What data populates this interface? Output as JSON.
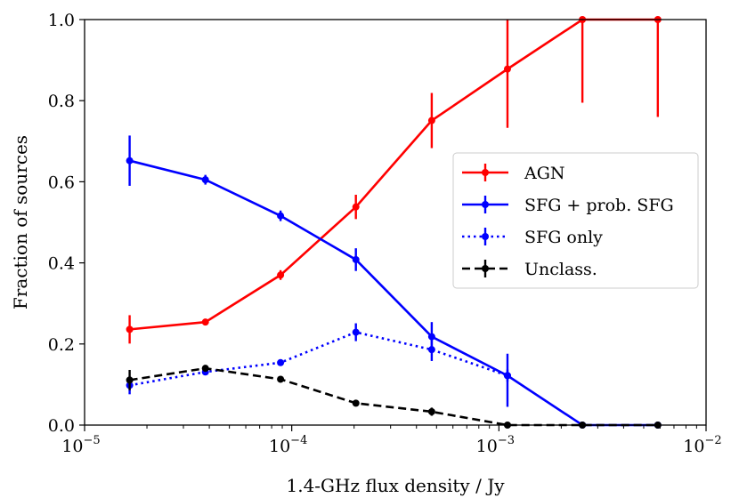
{
  "chart_data": {
    "type": "line",
    "xlabel": "1.4-GHz flux density / Jy",
    "ylabel": "Fraction of sources",
    "xscale": "log",
    "xlim": [
      1e-05,
      0.01
    ],
    "ylim": [
      0,
      1
    ],
    "x_ticks": [
      {
        "value": 1e-05,
        "base": "10",
        "exp": "−5"
      },
      {
        "value": 0.0001,
        "base": "10",
        "exp": "−4"
      },
      {
        "value": 0.001,
        "base": "10",
        "exp": "−3"
      },
      {
        "value": 0.01,
        "base": "10",
        "exp": "−2"
      }
    ],
    "y_ticks": [
      {
        "value": 0,
        "label": "0.0"
      },
      {
        "value": 0.2,
        "label": "0.2"
      },
      {
        "value": 0.4,
        "label": "0.4"
      },
      {
        "value": 0.6,
        "label": "0.6"
      },
      {
        "value": 0.8,
        "label": "0.8"
      },
      {
        "value": 1.0,
        "label": "1.0"
      }
    ],
    "grid": false,
    "legend_position": "right",
    "x": [
      1.65e-05,
      3.83e-05,
      8.83e-05,
      0.000204,
      0.000474,
      0.0011,
      0.00253,
      0.00585
    ],
    "series": [
      {
        "name": "AGN",
        "color": "#ff0000",
        "dash": "solid",
        "values": [
          0.236,
          0.254,
          0.37,
          0.538,
          0.751,
          0.878,
          1.0,
          1.0
        ],
        "err_low": [
          0.035,
          0.0,
          0.012,
          0.03,
          0.068,
          0.145,
          0.205,
          0.24
        ],
        "err_high": [
          0.035,
          0.0,
          0.012,
          0.03,
          0.068,
          0.122,
          0.0,
          0.0
        ]
      },
      {
        "name": "SFG + prob. SFG",
        "color": "#0000ff",
        "dash": "solid",
        "values": [
          0.652,
          0.605,
          0.516,
          0.408,
          0.218,
          0.122,
          0.0,
          0.0
        ],
        "err_low": [
          0.062,
          0.012,
          0.013,
          0.028,
          0.036,
          0.077,
          0.0,
          0.0
        ],
        "err_high": [
          0.062,
          0.012,
          0.013,
          0.028,
          0.036,
          0.054,
          0.0,
          0.0
        ]
      },
      {
        "name": "SFG only",
        "color": "#0000ff",
        "dash": "dotted",
        "values": [
          0.098,
          0.131,
          0.154,
          0.229,
          0.186,
          0.122,
          null,
          null
        ],
        "err_low": [
          0.022,
          0.008,
          0.006,
          0.022,
          0.028,
          0.015,
          0,
          0
        ],
        "err_high": [
          0.022,
          0.008,
          0.006,
          0.022,
          0.028,
          0.015,
          0,
          0
        ]
      },
      {
        "name": "Unclass.",
        "color": "#000000",
        "dash": "dashed",
        "values": [
          0.111,
          0.14,
          0.113,
          0.054,
          0.033,
          0.0,
          0.0,
          0.0
        ],
        "err_low": [
          0.025,
          0.005,
          0.006,
          0.007,
          0.01,
          0.0,
          0.0,
          0.0
        ],
        "err_high": [
          0.025,
          0.005,
          0.006,
          0.007,
          0.01,
          0.0,
          0.0,
          0.0
        ]
      }
    ]
  }
}
